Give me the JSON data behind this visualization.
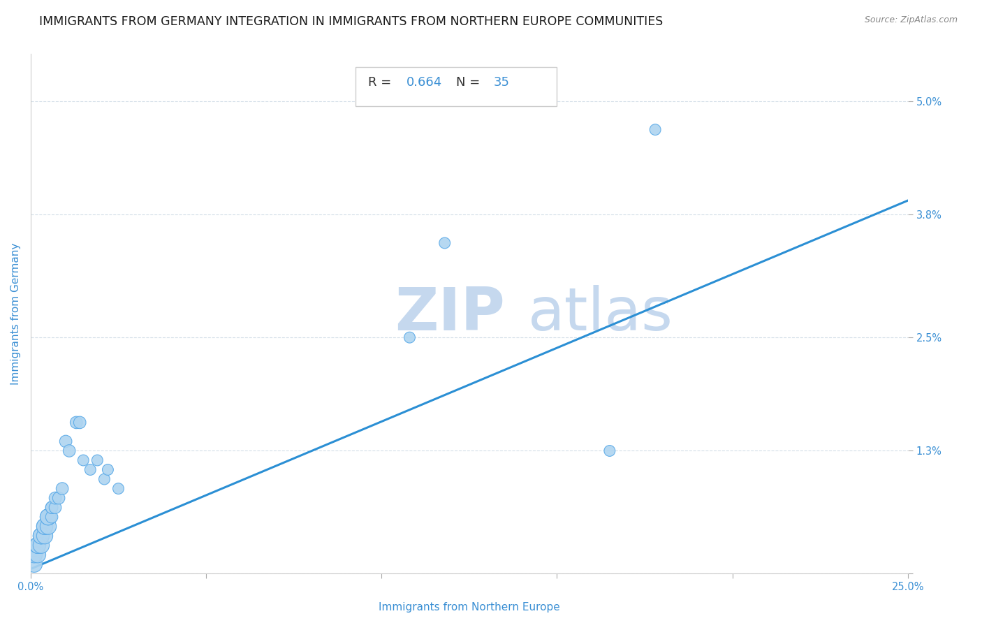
{
  "title": "IMMIGRANTS FROM GERMANY INTEGRATION IN IMMIGRANTS FROM NORTHERN EUROPE COMMUNITIES",
  "source": "Source: ZipAtlas.com",
  "xlabel": "Immigrants from Northern Europe",
  "ylabel": "Immigrants from Germany",
  "R": 0.664,
  "N": 35,
  "xlim": [
    0.0,
    0.25
  ],
  "ylim": [
    0.0,
    0.055
  ],
  "xticks": [
    0.0,
    0.05,
    0.1,
    0.15,
    0.2,
    0.25
  ],
  "xtick_labels": [
    "0.0%",
    "",
    "",
    "",
    "",
    "25.0%"
  ],
  "ytick_positions": [
    0.0,
    0.013,
    0.025,
    0.038,
    0.05
  ],
  "ytick_labels": [
    "",
    "1.3%",
    "2.5%",
    "3.8%",
    "5.0%"
  ],
  "scatter_x": [
    0.001,
    0.001,
    0.002,
    0.002,
    0.002,
    0.003,
    0.003,
    0.003,
    0.004,
    0.004,
    0.004,
    0.005,
    0.005,
    0.005,
    0.006,
    0.006,
    0.006,
    0.007,
    0.007,
    0.008,
    0.009,
    0.01,
    0.011,
    0.013,
    0.014,
    0.015,
    0.017,
    0.019,
    0.021,
    0.022,
    0.025,
    0.108,
    0.118,
    0.165,
    0.178
  ],
  "scatter_y": [
    0.001,
    0.002,
    0.002,
    0.003,
    0.003,
    0.003,
    0.004,
    0.004,
    0.004,
    0.005,
    0.005,
    0.005,
    0.006,
    0.006,
    0.006,
    0.007,
    0.007,
    0.007,
    0.008,
    0.008,
    0.009,
    0.014,
    0.013,
    0.016,
    0.016,
    0.012,
    0.011,
    0.012,
    0.01,
    0.011,
    0.009,
    0.025,
    0.035,
    0.013,
    0.047
  ],
  "dot_color": "#aed4f0",
  "dot_edge_color": "#5aaae8",
  "line_color": "#2b8fd4",
  "line_start_x": 0.0,
  "line_start_y": 0.0005,
  "line_end_x": 0.25,
  "line_end_y": 0.0395,
  "grid_color": "#d4dfe8",
  "watermark_zip": "ZIP",
  "watermark_atlas": "atlas",
  "watermark_color": "#c5d8ee",
  "background_color": "#ffffff",
  "title_fontsize": 12.5,
  "axis_label_fontsize": 11,
  "tick_fontsize": 10.5,
  "annotation_fontsize": 13
}
